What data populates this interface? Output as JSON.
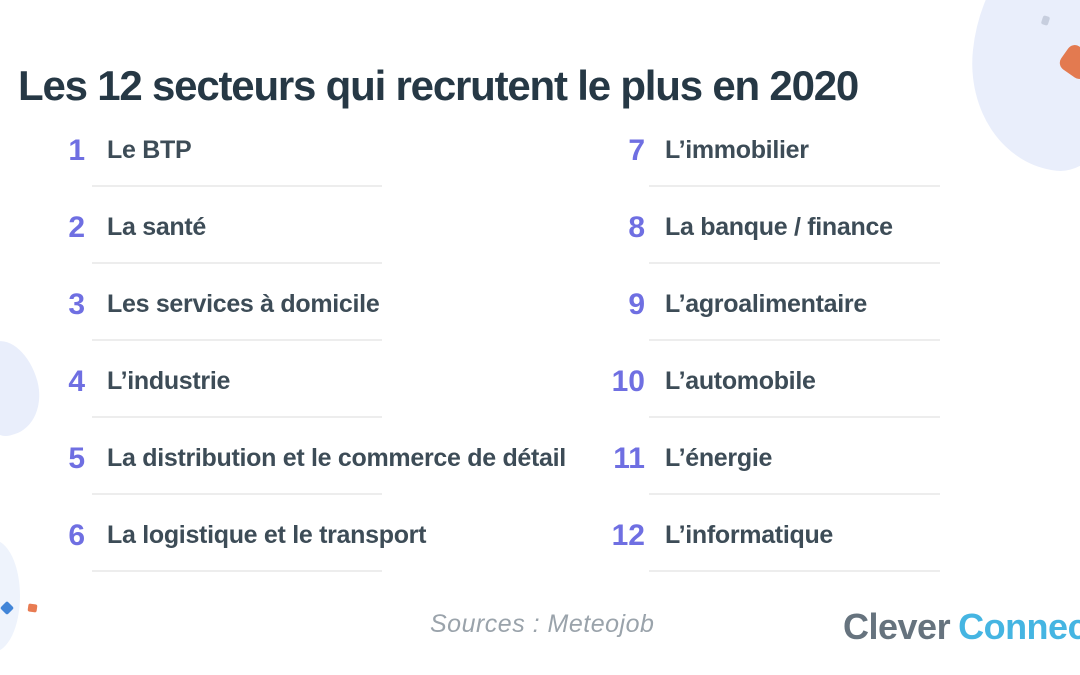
{
  "page": {
    "title": "Les 12 secteurs qui recrutent le plus en 2020",
    "source_text": "Sources : Meteojob",
    "logo": {
      "part1": "Clever",
      "part2": "Connect"
    }
  },
  "sectors": {
    "left": [
      {
        "rank": "1",
        "label": "Le BTP"
      },
      {
        "rank": "2",
        "label": "La santé"
      },
      {
        "rank": "3",
        "label": "Les services à domicile"
      },
      {
        "rank": "4",
        "label": "L’industrie"
      },
      {
        "rank": "5",
        "label": "La distribution et le commerce de détail"
      },
      {
        "rank": "6",
        "label": "La logistique et le transport"
      }
    ],
    "right": [
      {
        "rank": "7",
        "label": "L’immobilier"
      },
      {
        "rank": "8",
        "label": "La banque / finance"
      },
      {
        "rank": "9",
        "label": "L’agroalimentaire"
      },
      {
        "rank": "10",
        "label": "L’automobile"
      },
      {
        "rank": "11",
        "label": "L’énergie"
      },
      {
        "rank": "12",
        "label": "L’informatique"
      }
    ]
  },
  "colors": {
    "accent_rank": "#6f6fe2",
    "title_text": "#263845",
    "label_text": "#3d4c57",
    "divider": "#ededed",
    "blob_blue": "#e9eefb",
    "shape_orange": "#e37a50",
    "dot_blue": "#4285d8",
    "dot_orange": "#e87b52",
    "dot_gray": "#c7cede",
    "source_gray": "#9aa3ab",
    "logo_gray": "#66737e",
    "logo_blue": "#45b5e2"
  }
}
